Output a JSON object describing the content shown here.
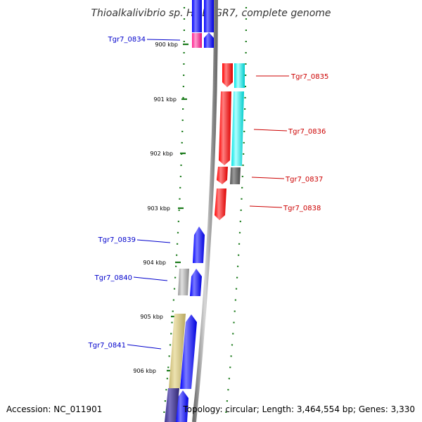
{
  "title": "Thioalkalivibrio sp. HL-EbGR7, complete genome",
  "footer": {
    "accession": "Accession: NC_011901",
    "summary": "Topology: circular; Length: 3,464,554 bp; Genes: 3,330"
  },
  "colors": {
    "backbone": "#8c8c8c",
    "tick": "#1a7a1a",
    "minus_strand_label": "#0000cc",
    "plus_strand_label": "#cc0000"
  },
  "scale_labels": [
    "900 kbp",
    "901 kbp",
    "902 kbp",
    "903 kbp",
    "904 kbp",
    "905 kbp",
    "906 kbp"
  ],
  "genes": [
    {
      "name": "Tgr7_0834",
      "strand": "minus",
      "label_color": "#0000cc"
    },
    {
      "name": "Tgr7_0835",
      "strand": "plus",
      "label_color": "#cc0000"
    },
    {
      "name": "Tgr7_0836",
      "strand": "plus",
      "label_color": "#cc0000"
    },
    {
      "name": "Tgr7_0837",
      "strand": "plus",
      "label_color": "#cc0000"
    },
    {
      "name": "Tgr7_0838",
      "strand": "plus",
      "label_color": "#cc0000"
    },
    {
      "name": "Tgr7_0839",
      "strand": "minus",
      "label_color": "#0000cc"
    },
    {
      "name": "Tgr7_0840",
      "strand": "minus",
      "label_color": "#0000cc"
    },
    {
      "name": "Tgr7_0841",
      "strand": "minus",
      "label_color": "#0000cc"
    }
  ]
}
